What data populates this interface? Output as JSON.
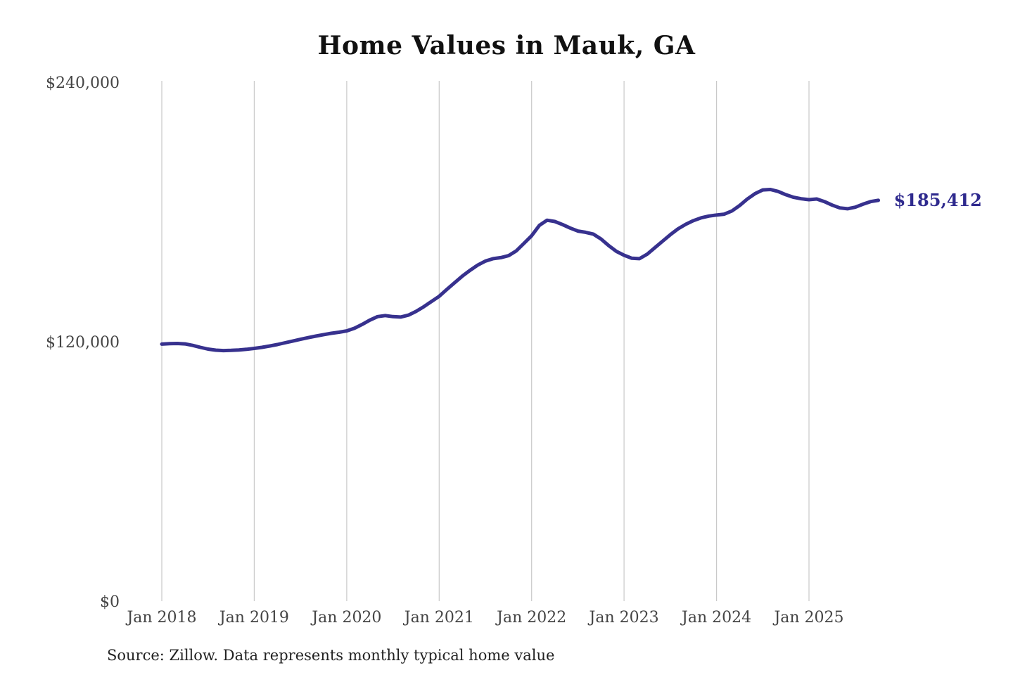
{
  "title": {
    "text": "Home Values in Mauk, GA"
  },
  "source": {
    "text": "Source: Zillow. Data represents monthly typical home value"
  },
  "chart_data": {
    "type": "line",
    "title": "Home Values in Mauk, GA",
    "series_name": "Monthly typical home value",
    "frequency": "monthly",
    "start_month": "2018-01",
    "end_month": "2025-10",
    "values": [
      118900,
      119100,
      119200,
      119000,
      118300,
      117400,
      116600,
      116100,
      115900,
      116000,
      116200,
      116500,
      116900,
      117400,
      118000,
      118700,
      119500,
      120300,
      121100,
      121900,
      122600,
      123300,
      123900,
      124400,
      125000,
      126200,
      128000,
      130000,
      131600,
      132100,
      131600,
      131400,
      132300,
      134000,
      136200,
      138600,
      141000,
      144200,
      147300,
      150300,
      153000,
      155400,
      157300,
      158400,
      158900,
      159800,
      162000,
      165500,
      169000,
      173800,
      176200,
      175600,
      174200,
      172600,
      171200,
      170600,
      169800,
      167500,
      164500,
      161800,
      160000,
      158600,
      158400,
      160500,
      163500,
      166500,
      169500,
      172200,
      174300,
      176000,
      177300,
      178100,
      178600,
      179000,
      180500,
      183000,
      186000,
      188500,
      190200,
      190400,
      189500,
      188000,
      186800,
      186100,
      185700,
      186000,
      184800,
      183200,
      181900,
      181500,
      182200,
      183600,
      184800,
      185412
    ],
    "end_label": "$185,412",
    "end_value": 185412,
    "x_ticks": [
      {
        "label": "Jan 2018",
        "month_index": 0
      },
      {
        "label": "Jan 2019",
        "month_index": 12
      },
      {
        "label": "Jan 2020",
        "month_index": 24
      },
      {
        "label": "Jan 2021",
        "month_index": 36
      },
      {
        "label": "Jan 2022",
        "month_index": 48
      },
      {
        "label": "Jan 2023",
        "month_index": 60
      },
      {
        "label": "Jan 2024",
        "month_index": 72
      },
      {
        "label": "Jan 2025",
        "month_index": 84
      }
    ],
    "y_ticks": [
      {
        "label": "$240,000",
        "value": 240000
      },
      {
        "label": "$120,000",
        "value": 120000
      },
      {
        "label": "$0",
        "value": 0
      }
    ],
    "ylim": [
      0,
      240000
    ],
    "xlabel": "",
    "ylabel": "",
    "legend": "none",
    "grid": "vertical-only",
    "colors": {
      "line": "#37318e",
      "end_label": "#2f2a8e",
      "grid": "#c9c9c9",
      "axis_text": "#444444",
      "title_text": "#111111",
      "background": "#ffffff"
    }
  }
}
